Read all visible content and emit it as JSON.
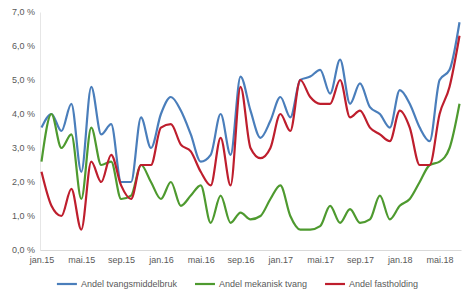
{
  "chart_data": {
    "type": "line",
    "categories": [
      "jan.15",
      null,
      null,
      null,
      "mai.15",
      null,
      null,
      null,
      "sep.15",
      null,
      null,
      null,
      "jan.16",
      null,
      null,
      null,
      "mai.16",
      null,
      null,
      null,
      "sep.16",
      null,
      null,
      null,
      "jan.17",
      null,
      null,
      null,
      "mai.17",
      null,
      null,
      null,
      "sep.17",
      null,
      null,
      null,
      "jan.18",
      null,
      null,
      null,
      "mai.18",
      null,
      null
    ],
    "series": [
      {
        "name": "Andel tvangsmiddelbruk",
        "color": "#4a7ebb",
        "values": [
          3.6,
          4.0,
          3.5,
          4.3,
          2.3,
          4.8,
          3.4,
          3.7,
          2.0,
          2.0,
          3.9,
          3.0,
          4.0,
          4.5,
          4.1,
          3.4,
          2.6,
          2.8,
          4.0,
          2.8,
          5.1,
          4.1,
          3.3,
          3.8,
          4.5,
          3.9,
          5.0,
          5.1,
          5.3,
          4.6,
          5.6,
          4.3,
          4.9,
          4.2,
          4.0,
          3.6,
          4.7,
          4.3,
          3.6,
          3.2,
          5.0,
          5.3,
          6.7
        ]
      },
      {
        "name": "Andel mekanisk tvang",
        "color": "#4e9a2f",
        "values": [
          2.6,
          4.0,
          3.0,
          3.4,
          1.5,
          3.6,
          2.5,
          2.6,
          1.5,
          1.6,
          2.5,
          2.0,
          1.5,
          2.0,
          1.3,
          1.6,
          1.9,
          0.8,
          1.6,
          0.8,
          1.1,
          0.9,
          1.0,
          1.5,
          1.9,
          1.0,
          0.6,
          0.6,
          0.7,
          1.3,
          0.8,
          1.2,
          0.8,
          0.9,
          1.6,
          0.9,
          1.3,
          1.5,
          2.0,
          2.5,
          2.6,
          3.0,
          4.3
        ]
      },
      {
        "name": "Andel fastholding",
        "color": "#be1e2d",
        "values": [
          2.3,
          1.3,
          1.0,
          1.8,
          0.6,
          2.6,
          2.0,
          2.8,
          1.9,
          1.5,
          2.5,
          2.5,
          3.6,
          3.7,
          3.1,
          2.9,
          2.3,
          1.9,
          3.3,
          1.9,
          4.8,
          3.0,
          2.7,
          3.0,
          4.0,
          3.5,
          5.0,
          4.5,
          4.3,
          4.3,
          5.0,
          3.9,
          4.1,
          3.6,
          3.4,
          3.2,
          4.1,
          3.6,
          2.5,
          2.5,
          4.0,
          4.8,
          6.3
        ]
      }
    ],
    "ylim": [
      0,
      7
    ],
    "yticks": [
      {
        "value": 0,
        "label": "0,0 %"
      },
      {
        "value": 1,
        "label": "1,0 %"
      },
      {
        "value": 2,
        "label": "2,0 %"
      },
      {
        "value": 3,
        "label": "3,0 %"
      },
      {
        "value": 4,
        "label": "4,0 %"
      },
      {
        "value": 5,
        "label": "5,0 %"
      },
      {
        "value": 6,
        "label": "6,0 %"
      },
      {
        "value": 7,
        "label": "7,0 %"
      }
    ],
    "grid": false,
    "legend": "bottom"
  }
}
